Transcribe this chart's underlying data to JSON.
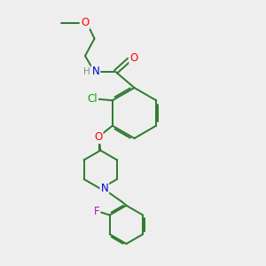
{
  "bg_color": "#eeeeee",
  "bond_color": "#2d7a2d",
  "atom_colors": {
    "O": "#ff0000",
    "N": "#0000cc",
    "Cl": "#00aa00",
    "F": "#cc00cc",
    "H": "#888888",
    "C": "#2d7a2d"
  },
  "line_width": 1.4,
  "font_size": 8.5
}
